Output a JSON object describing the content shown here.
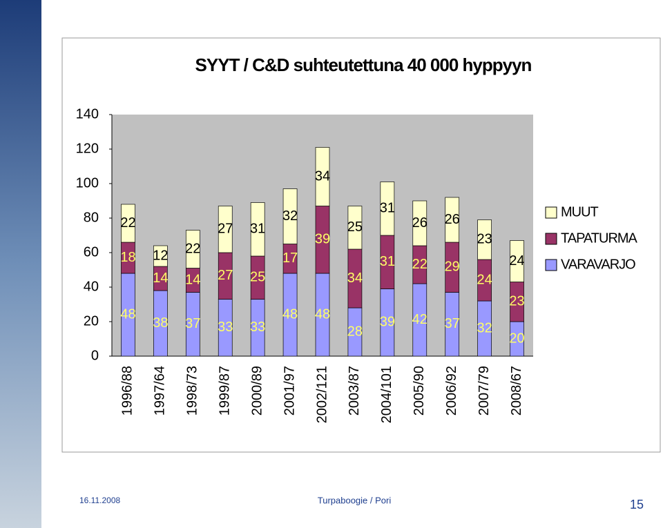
{
  "chart_data": {
    "type": "bar",
    "stacked": true,
    "title": "SYYT / C&D suhteutettuna 40 000 hyppyyn",
    "categories": [
      "1996/88",
      "1997/64",
      "1998/73",
      "1999/87",
      "2000/89",
      "2001/97",
      "2002/121",
      "2003/87",
      "2004/101",
      "2005/90",
      "2006/92",
      "2007/79",
      "2008/67"
    ],
    "series": [
      {
        "name": "VARAVARJO",
        "color": "#9999ff",
        "label_color": "#ffff66",
        "values": [
          48,
          38,
          37,
          33,
          33,
          48,
          48,
          28,
          39,
          42,
          37,
          32,
          20
        ]
      },
      {
        "name": "TAPATURMA",
        "color": "#993366",
        "label_color": "#ffff66",
        "values": [
          18,
          14,
          14,
          27,
          25,
          17,
          39,
          34,
          31,
          22,
          29,
          24,
          23
        ]
      },
      {
        "name": "MUUT",
        "color": "#ffffcc",
        "label_color": "#000000",
        "values": [
          22,
          12,
          22,
          27,
          31,
          32,
          34,
          25,
          31,
          26,
          26,
          23,
          24
        ]
      }
    ],
    "ylim": [
      0,
      140
    ],
    "yticks": [
      0,
      20,
      40,
      60,
      80,
      100,
      120,
      140
    ],
    "grid": false,
    "legend": "right"
  },
  "footer": {
    "date": "16.11.2008",
    "center": "Turpaboogie / Pori",
    "page": "15"
  }
}
